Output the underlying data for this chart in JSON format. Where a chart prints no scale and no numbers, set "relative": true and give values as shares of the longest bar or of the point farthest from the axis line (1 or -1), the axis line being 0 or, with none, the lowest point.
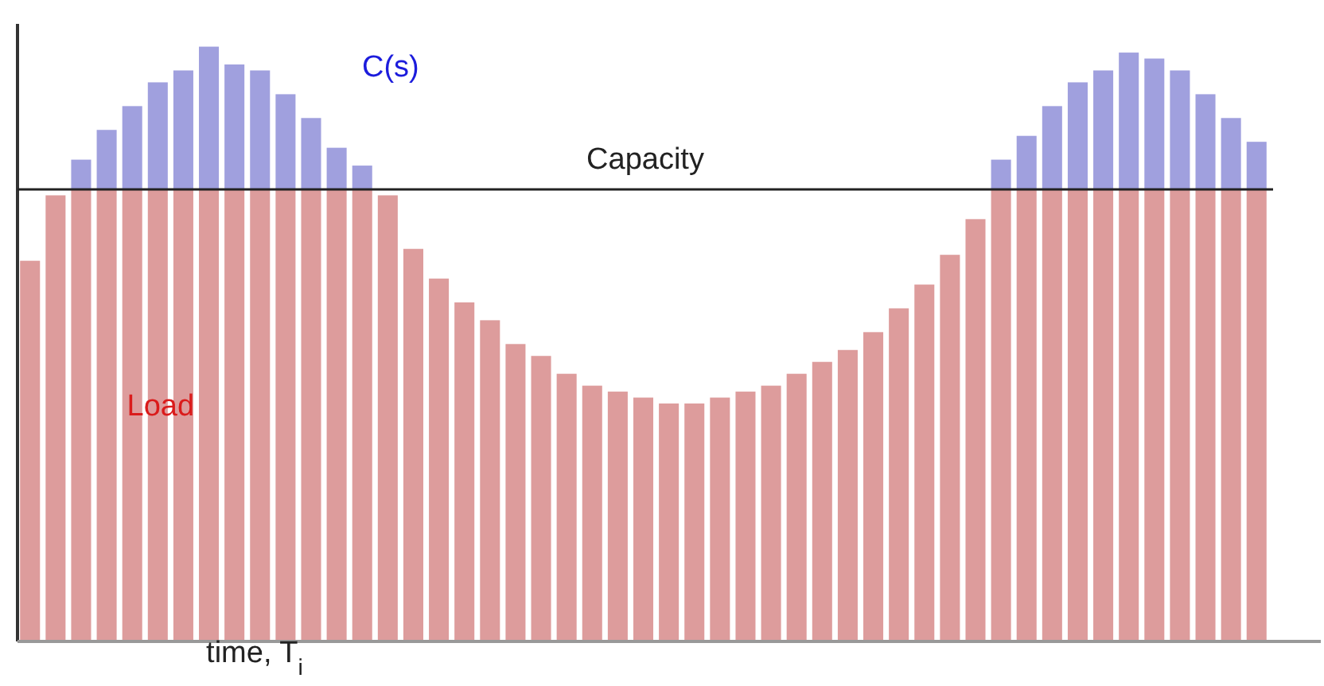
{
  "chart_data": {
    "type": "bar",
    "stacked": true,
    "relative": true,
    "xlabel": "time, T$_{i}$",
    "legend": false,
    "categories": [
      null,
      null,
      null,
      null,
      null,
      null,
      null,
      null,
      null,
      null,
      null,
      null,
      null,
      null,
      null,
      null,
      null,
      null,
      null,
      null,
      null,
      null,
      null,
      null,
      null,
      null,
      null,
      null,
      null,
      null,
      null,
      null,
      null,
      null,
      null,
      null,
      null,
      null,
      null,
      null,
      null,
      null,
      null,
      null,
      null,
      null,
      null,
      null,
      null
    ],
    "series": [
      {
        "name": "Load",
        "color": "#dd9c9c",
        "values": [
          0.64,
          0.75,
          0.76,
          0.76,
          0.76,
          0.76,
          0.76,
          0.76,
          0.76,
          0.76,
          0.76,
          0.76,
          0.76,
          0.76,
          0.75,
          0.66,
          0.61,
          0.57,
          0.54,
          0.5,
          0.48,
          0.45,
          0.43,
          0.42,
          0.41,
          0.4,
          0.4,
          0.41,
          0.42,
          0.43,
          0.45,
          0.47,
          0.49,
          0.52,
          0.56,
          0.6,
          0.65,
          0.71,
          0.76,
          0.76,
          0.76,
          0.76,
          0.76,
          0.76,
          0.76,
          0.76,
          0.76,
          0.76,
          0.76
        ]
      },
      {
        "name": "C(s)",
        "color": "#a0a0de",
        "values": [
          null,
          null,
          0.05,
          0.1,
          0.14,
          0.18,
          0.2,
          0.24,
          0.21,
          0.2,
          0.16,
          0.12,
          0.07,
          0.04,
          null,
          null,
          null,
          null,
          null,
          null,
          null,
          null,
          null,
          null,
          null,
          null,
          null,
          null,
          null,
          null,
          null,
          null,
          null,
          null,
          null,
          null,
          null,
          null,
          0.05,
          0.09,
          0.14,
          0.18,
          0.2,
          0.23,
          0.22,
          0.2,
          0.16,
          0.12,
          0.08
        ]
      }
    ],
    "ref_lines": [
      {
        "axis": "y",
        "value": 0.76,
        "label": "Capacity",
        "color": "#222222"
      }
    ]
  }
}
